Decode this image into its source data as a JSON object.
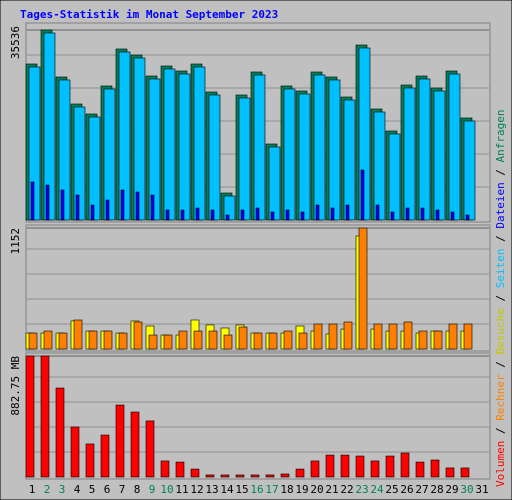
{
  "title": "Tages-Statistik im Monat September 2023",
  "legend_separator": "/",
  "categories": [
    "1",
    "2",
    "3",
    "4",
    "5",
    "6",
    "7",
    "8",
    "9",
    "10",
    "11",
    "12",
    "13",
    "14",
    "15",
    "16",
    "17",
    "18",
    "19",
    "20",
    "21",
    "22",
    "23",
    "24",
    "25",
    "26",
    "27",
    "28",
    "29",
    "30",
    "31"
  ],
  "category_colors": [
    "#000000",
    "#00805c",
    "#00805c",
    "#000000",
    "#000000",
    "#000000",
    "#000000",
    "#000000",
    "#00805c",
    "#00805c",
    "#000000",
    "#000000",
    "#000000",
    "#000000",
    "#000000",
    "#00805c",
    "#00805c",
    "#000000",
    "#000000",
    "#000000",
    "#000000",
    "#000000",
    "#00805c",
    "#00805c",
    "#000000",
    "#000000",
    "#000000",
    "#000000",
    "#000000",
    "#00805c",
    "#000000"
  ],
  "chart_data": [
    {
      "type": "bar",
      "ylim": [
        0,
        35536
      ],
      "yticks": [
        35536
      ],
      "series": [
        {
          "name": "Anfragen",
          "color": "#00805c",
          "values": [
            29177,
            35536,
            26746,
            21696,
            19826,
            25062,
            31982,
            30860,
            26933,
            28803,
            27868,
            29177,
            23940,
            5050,
            23379,
            27681,
            14214,
            25062,
            24127,
            27681,
            26746,
            23005,
            32730,
            20760,
            16646,
            25249,
            26933,
            24688,
            27868,
            19077,
            null
          ]
        },
        {
          "name": "Seiten",
          "color": "#00c0ff",
          "values": [
            28617,
            34976,
            26186,
            21136,
            19266,
            24502,
            31422,
            30300,
            26373,
            28243,
            27308,
            28617,
            23380,
            4490,
            22819,
            27121,
            13654,
            24502,
            23567,
            27121,
            26186,
            22445,
            32170,
            20200,
            16086,
            24689,
            26373,
            24128,
            27308,
            18517,
            null
          ]
        },
        {
          "name": "Dateien",
          "color": "#0000ff",
          "values": [
            7106,
            6545,
            5610,
            4675,
            2805,
            3740,
            5610,
            5236,
            4675,
            1870,
            1870,
            2244,
            1870,
            935,
            1870,
            2244,
            1496,
            1870,
            1496,
            2805,
            2244,
            2805,
            9350,
            2805,
            1496,
            2244,
            2244,
            1870,
            1496,
            935,
            null
          ]
        }
      ]
    },
    {
      "type": "bar",
      "ylim": [
        0,
        1152
      ],
      "yticks": [
        1152
      ],
      "series": [
        {
          "name": "Besuche",
          "color": "#ffff00",
          "values": [
            152,
            152,
            152,
            267,
            171,
            171,
            152,
            267,
            219,
            133,
            133,
            276,
            229,
            200,
            229,
            152,
            152,
            152,
            219,
            171,
            143,
            190,
            1076,
            190,
            171,
            171,
            152,
            171,
            171,
            171,
            null
          ]
        },
        {
          "name": "Rechner",
          "color": "#ff8000",
          "values": [
            152,
            171,
            152,
            276,
            171,
            171,
            152,
            257,
            133,
            133,
            171,
            171,
            171,
            133,
            209,
            152,
            152,
            171,
            152,
            238,
            238,
            257,
            1152,
            238,
            238,
            257,
            171,
            171,
            238,
            238,
            null
          ]
        }
      ]
    },
    {
      "type": "bar",
      "ylim": [
        0,
        882.75
      ],
      "yticks": [
        {
          "value": 882.75,
          "label": "882.75 MB"
        }
      ],
      "series": [
        {
          "name": "Volumen",
          "color": "#ff0000",
          "values": [
            882.75,
            882.75,
            649,
            365,
            241,
            306,
            525,
            474,
            409,
            117,
            109,
            58,
            15,
            15,
            15,
            15,
            15,
            22,
            58,
            117,
            160,
            160,
            153,
            117,
            153,
            175,
            109,
            124,
            66,
            66,
            null
          ]
        }
      ]
    }
  ]
}
